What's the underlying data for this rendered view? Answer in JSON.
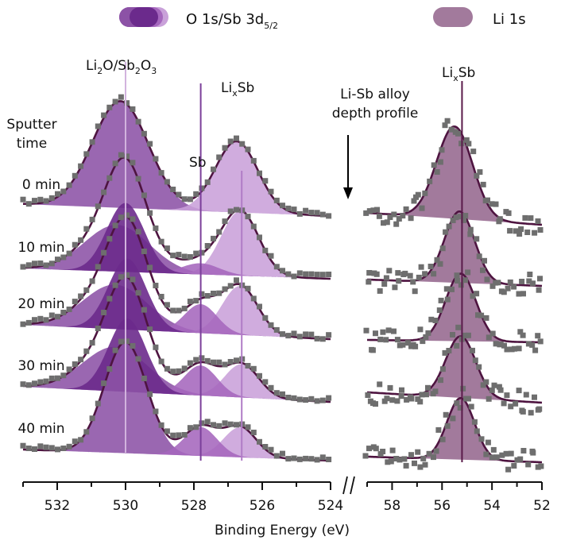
{
  "legend": {
    "items": [
      {
        "label": "O 1s/Sb 3d",
        "subscript": "5/2",
        "colors": [
          "#8c52a6",
          "#6b2a8c",
          "#a567bd",
          "#c9a1d9"
        ]
      },
      {
        "label": "Li 1s",
        "subscript": "",
        "colors": [
          "#a27a9c"
        ]
      }
    ]
  },
  "annotations": {
    "li2o_sb2o3": {
      "parts": [
        "Li",
        "2",
        "O/Sb",
        "2",
        "O",
        "3"
      ],
      "energy_eV": 530.0
    },
    "lixsb_left": {
      "parts": [
        "Li",
        "x",
        "Sb"
      ],
      "energy_eV": 526.6
    },
    "sb": {
      "text": "Sb",
      "energy_eV": 527.8
    },
    "lixsb_right": {
      "parts": [
        "Li",
        "x",
        "Sb"
      ],
      "energy_eV": 55.2
    },
    "depth_profile": [
      "Li-Sb alloy",
      "depth profile"
    ],
    "sputter_time": [
      "Sputter",
      "time"
    ],
    "break_mark": "//"
  },
  "chart_data": {
    "type": "line",
    "title": "",
    "xlabel": "Binding Energy (eV)",
    "ylabel": "",
    "grid": false,
    "x_axes": [
      {
        "name": "O 1s/Sb 3d5/2",
        "range": [
          533,
          524
        ],
        "ticks": [
          532,
          530,
          528,
          526,
          524
        ],
        "minor_ticks": [
          533,
          531,
          529,
          527,
          525
        ]
      },
      {
        "name": "Li 1s",
        "range": [
          59,
          52
        ],
        "ticks": [
          58,
          56,
          54,
          52
        ],
        "minor_ticks": [
          59,
          57,
          55,
          53
        ]
      }
    ],
    "spectra": [
      {
        "label": "0 min",
        "o1s": {
          "components": [
            {
              "name": "Li2O/Sb2O3 (broad)",
              "center": 530.15,
              "sigma": 0.82,
              "height": 0.96,
              "color": "#8c52a6"
            },
            {
              "name": "Li2O/Sb2O3",
              "center": 530.0,
              "sigma": 0.55,
              "height": 0.0,
              "color": "#6b2a8c"
            },
            {
              "name": "Sb",
              "center": 527.8,
              "sigma": 0.55,
              "height": 0.0,
              "color": "#a567bd"
            },
            {
              "name": "LixSb",
              "center": 526.75,
              "sigma": 0.62,
              "height": 0.64,
              "color": "#c9a1d9"
            }
          ]
        },
        "li1s": {
          "center": 55.5,
          "sigma": 0.72,
          "height": 0.93
        }
      },
      {
        "label": "10 min",
        "o1s": {
          "components": [
            {
              "name": "Li2O/Sb2O3 (broad)",
              "center": 530.25,
              "sigma": 0.95,
              "height": 0.42,
              "color": "#8c52a6"
            },
            {
              "name": "Li2O/Sb2O3",
              "center": 530.0,
              "sigma": 0.55,
              "height": 0.62,
              "color": "#6b2a8c"
            },
            {
              "name": "Sb",
              "center": 527.8,
              "sigma": 0.55,
              "height": 0.1,
              "color": "#a567bd"
            },
            {
              "name": "LixSb",
              "center": 526.65,
              "sigma": 0.55,
              "height": 0.58,
              "color": "#c9a1d9"
            }
          ]
        },
        "li1s": {
          "center": 55.3,
          "sigma": 0.6,
          "height": 0.72
        }
      },
      {
        "label": "20 min",
        "o1s": {
          "components": [
            {
              "name": "Li2O/Sb2O3 (broad)",
              "center": 530.3,
              "sigma": 0.95,
              "height": 0.4,
              "color": "#8c52a6"
            },
            {
              "name": "Li2O/Sb2O3",
              "center": 529.95,
              "sigma": 0.55,
              "height": 0.64,
              "color": "#6b2a8c"
            },
            {
              "name": "Sb",
              "center": 527.8,
              "sigma": 0.48,
              "height": 0.26,
              "color": "#a567bd"
            },
            {
              "name": "LixSb",
              "center": 526.65,
              "sigma": 0.52,
              "height": 0.44,
              "color": "#c9a1d9"
            }
          ]
        },
        "li1s": {
          "center": 55.25,
          "sigma": 0.6,
          "height": 0.68
        }
      },
      {
        "label": "30 min",
        "o1s": {
          "components": [
            {
              "name": "Li2O/Sb2O3 (broad)",
              "center": 530.3,
              "sigma": 0.95,
              "height": 0.4,
              "color": "#8c52a6"
            },
            {
              "name": "Li2O/Sb2O3",
              "center": 529.95,
              "sigma": 0.55,
              "height": 0.66,
              "color": "#6b2a8c"
            },
            {
              "name": "Sb",
              "center": 527.8,
              "sigma": 0.48,
              "height": 0.27,
              "color": "#a567bd"
            },
            {
              "name": "LixSb",
              "center": 526.6,
              "sigma": 0.5,
              "height": 0.3,
              "color": "#c9a1d9"
            }
          ]
        },
        "li1s": {
          "center": 55.25,
          "sigma": 0.6,
          "height": 0.62
        }
      },
      {
        "label": "40 min",
        "o1s": {
          "components": [
            {
              "name": "Li2O/Sb2O3 (broad)",
              "center": 530.0,
              "sigma": 0.62,
              "height": 1.0,
              "color": "#8c52a6"
            },
            {
              "name": "Li2O/Sb2O3",
              "center": 530.0,
              "sigma": 0.55,
              "height": 0.0,
              "color": "#6b2a8c"
            },
            {
              "name": "Sb",
              "center": 527.8,
              "sigma": 0.48,
              "height": 0.26,
              "color": "#a567bd"
            },
            {
              "name": "LixSb",
              "center": 526.65,
              "sigma": 0.48,
              "height": 0.27,
              "color": "#c9a1d9"
            }
          ]
        },
        "li1s": {
          "center": 55.25,
          "sigma": 0.55,
          "height": 0.62
        }
      }
    ],
    "reference_lines": [
      {
        "label": "Li2O/Sb2O3",
        "energy_eV": 530.0,
        "color": "#d2b3de"
      },
      {
        "label": "Sb",
        "energy_eV": 527.8,
        "color": "#7b3f9a"
      },
      {
        "label": "LixSb",
        "energy_eV": 526.6,
        "color": "#b07cc6"
      },
      {
        "label": "LixSb (Li 1s)",
        "energy_eV": 55.2,
        "color": "#5a1a4a"
      }
    ],
    "styles": {
      "fit_line": "#4e1440",
      "data_points": "#6e6e6e",
      "li1s_fill": "#a27a9c"
    }
  }
}
